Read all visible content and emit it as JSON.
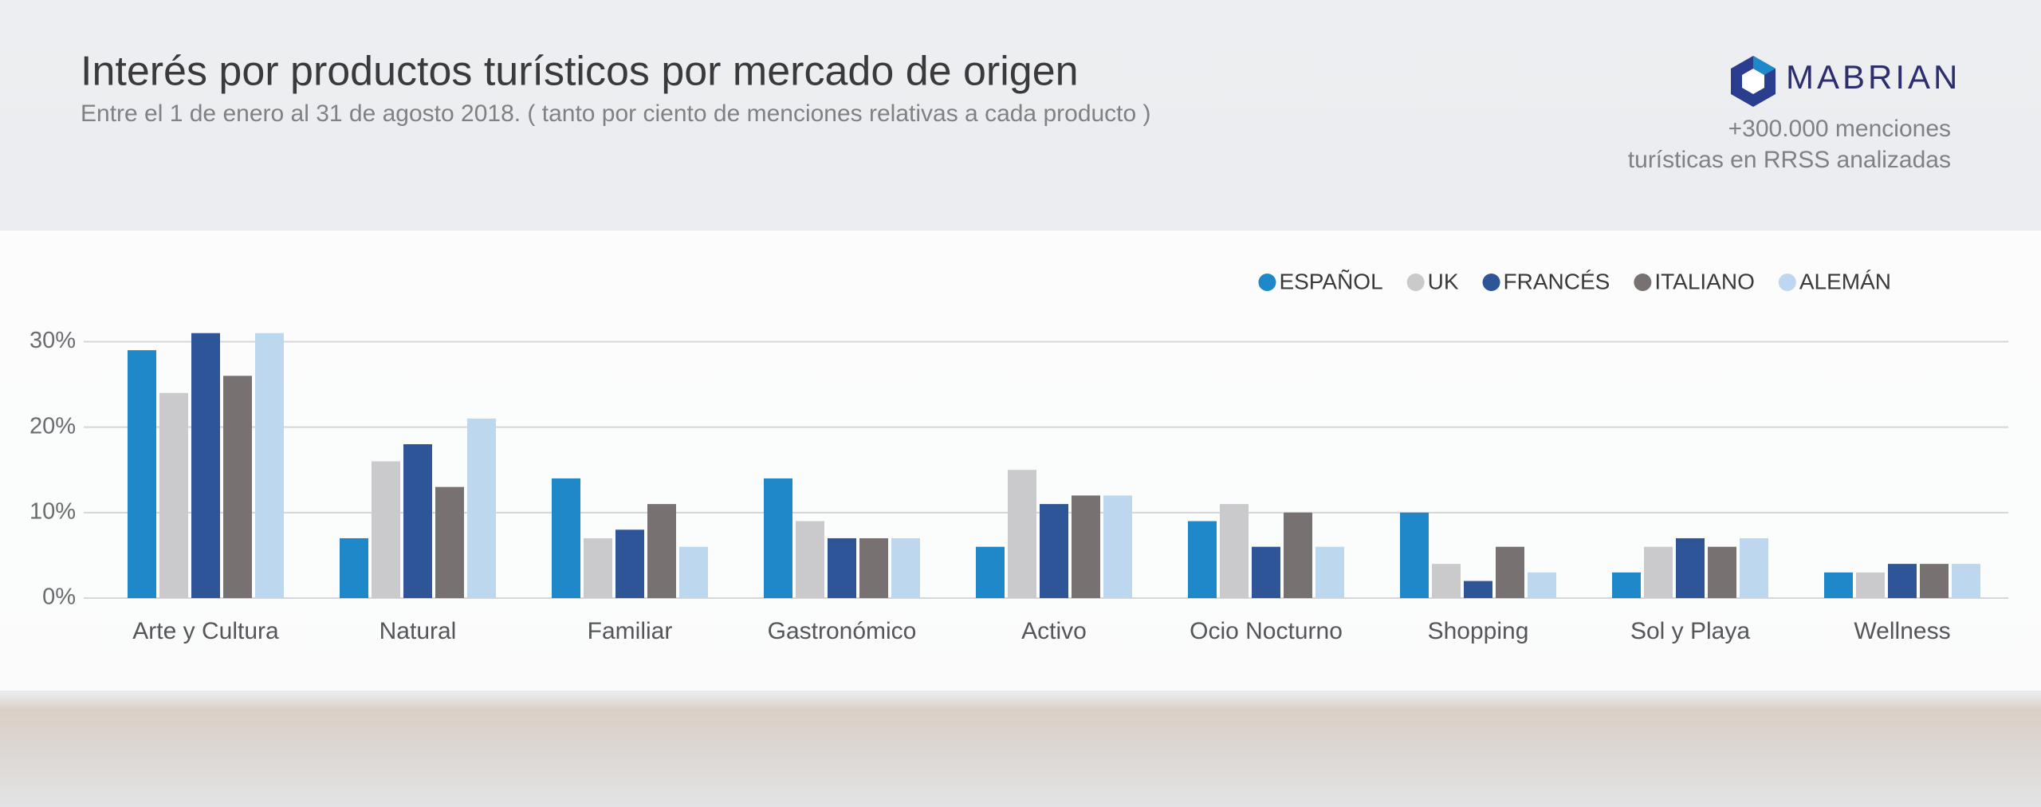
{
  "chart_data": {
    "type": "bar",
    "title": "Interés por productos turísticos por mercado de origen",
    "subtitle": "Entre el 1 de enero al 31 de agosto 2018.  ( tanto por ciento de menciones relativas a cada producto )",
    "categories": [
      "Arte y Cultura",
      "Natural",
      "Familiar",
      "Gastronómico",
      "Activo",
      "Ocio Nocturno",
      "Shopping",
      "Sol y Playa",
      "Wellness"
    ],
    "series": [
      {
        "name": "ESPAÑOL",
        "color": "#1f88c9",
        "values": [
          29,
          7,
          14,
          14,
          6,
          9,
          10,
          3,
          3
        ]
      },
      {
        "name": "UK",
        "color": "#cacacd",
        "values": [
          24,
          16,
          7,
          9,
          15,
          11,
          4,
          6,
          3
        ]
      },
      {
        "name": "FRANCÉS",
        "color": "#2d5597",
        "values": [
          31,
          18,
          8,
          7,
          11,
          6,
          2,
          7,
          4
        ]
      },
      {
        "name": "ITALIANO",
        "color": "#787171",
        "values": [
          26,
          13,
          11,
          7,
          12,
          10,
          6,
          6,
          4
        ]
      },
      {
        "name": "ALEMÁN",
        "color": "#bdd7ef",
        "values": [
          31,
          21,
          6,
          7,
          12,
          6,
          3,
          7,
          4
        ]
      }
    ],
    "ylim": [
      0,
      32
    ],
    "yticks": [
      {
        "value": 0,
        "label": "0%"
      },
      {
        "value": 10,
        "label": "10%"
      },
      {
        "value": 20,
        "label": "20%"
      },
      {
        "value": 30,
        "label": "30%"
      }
    ],
    "grid": true,
    "legend": "top-right"
  },
  "brand": "MABRIAN",
  "note": [
    "+300.000 menciones",
    "turísticas en RRSS analizadas"
  ]
}
